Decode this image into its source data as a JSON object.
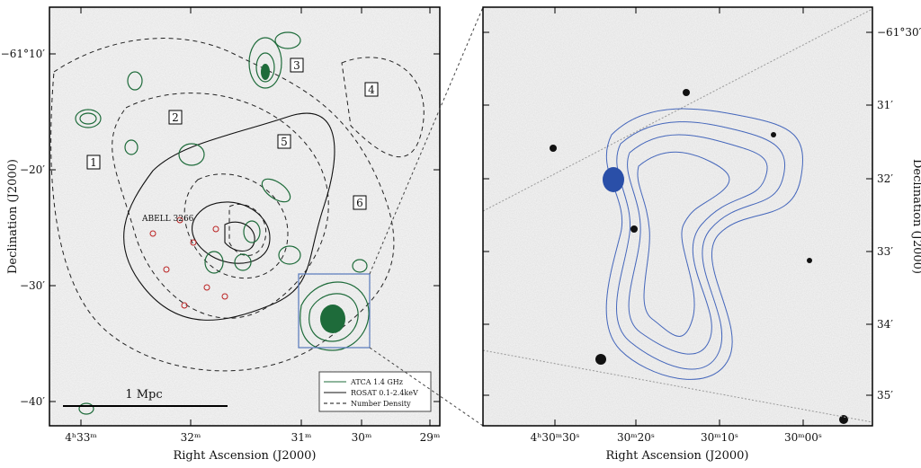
{
  "left_panel": {
    "x_axis_label": "Right Ascension (J2000)",
    "y_axis_label": "Declination (J2000)",
    "x_tick_labels": [
      "4ʰ33ᵐ",
      "32ᵐ",
      "31ᵐ",
      "30ᵐ",
      "29ᵐ"
    ],
    "y_tick_labels": [
      "−61°10′",
      "−20′",
      "−30′",
      "−40′"
    ],
    "region_labels": [
      "1",
      "2",
      "3",
      "4",
      "5",
      "6"
    ],
    "cluster_label": "ABELL 3266",
    "scale_bar_label": "1 Mpc",
    "legend": [
      "ATCA 1.4 GHz",
      "ROSAT 0.1-2.4keV",
      "Number Density"
    ]
  },
  "right_panel": {
    "x_axis_label": "Right Ascension (J2000)",
    "y_axis_label": "Declination (J2000)",
    "x_tick_labels": [
      "4ʰ30ᵐ30ˢ",
      "30ᵐ20ˢ",
      "30ᵐ10ˢ",
      "30ᵐ00ˢ"
    ],
    "y_tick_labels": [
      "−61°30′",
      "31′",
      "32′",
      "33′",
      "34′",
      "35′"
    ]
  }
}
